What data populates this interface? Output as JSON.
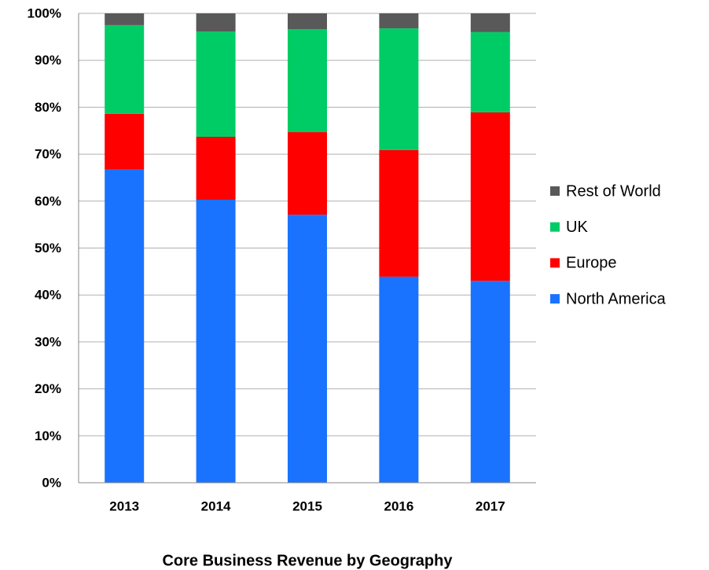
{
  "chart_data": {
    "type": "stacked_bar",
    "title": "Core Business Revenue by Geography",
    "categories": [
      "2013",
      "2014",
      "2015",
      "2016",
      "2017"
    ],
    "series": [
      {
        "name": "North America",
        "color": "#1a73ff",
        "values": [
          66.7,
          60.3,
          57.1,
          43.9,
          43.0
        ]
      },
      {
        "name": "Europe",
        "color": "#ff0000",
        "values": [
          11.9,
          13.4,
          17.6,
          27.0,
          35.9
        ]
      },
      {
        "name": "UK",
        "color": "#00cc66",
        "values": [
          18.9,
          22.4,
          21.9,
          25.9,
          17.1
        ]
      },
      {
        "name": "Rest of World",
        "color": "#595959",
        "values": [
          2.5,
          3.9,
          3.4,
          3.2,
          4.0
        ]
      }
    ],
    "ylim": [
      0,
      100
    ],
    "yticks": [
      {
        "value": 0,
        "label": "0%"
      },
      {
        "value": 10,
        "label": "10%"
      },
      {
        "value": 20,
        "label": "20%"
      },
      {
        "value": 30,
        "label": "30%"
      },
      {
        "value": 40,
        "label": "40%"
      },
      {
        "value": 50,
        "label": "50%"
      },
      {
        "value": 60,
        "label": "60%"
      },
      {
        "value": 70,
        "label": "70%"
      },
      {
        "value": 80,
        "label": "80%"
      },
      {
        "value": 90,
        "label": "90%"
      },
      {
        "value": 100,
        "label": "100%"
      }
    ],
    "grid": true,
    "legend": "right"
  }
}
